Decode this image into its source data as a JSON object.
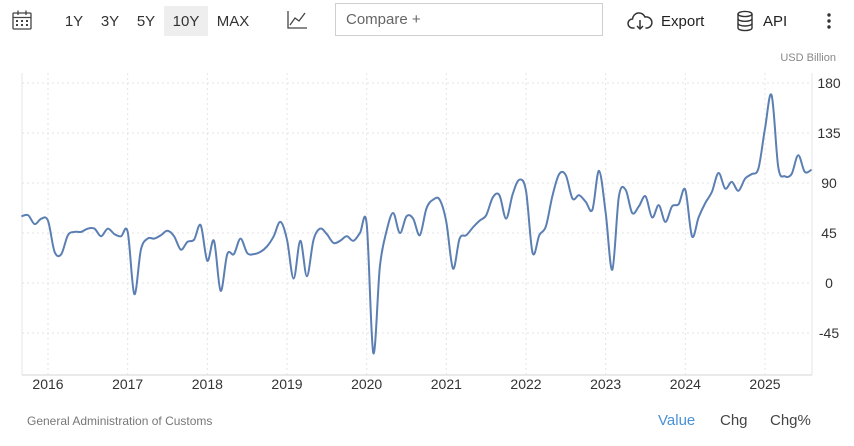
{
  "toolbar": {
    "ranges": [
      "1Y",
      "3Y",
      "5Y",
      "10Y",
      "MAX"
    ],
    "active_range": "10Y",
    "compare_placeholder": "Compare +",
    "export_label": "Export",
    "api_label": "API",
    "icons": [
      "calendar-icon",
      "line-chart-icon",
      "cloud-download-icon",
      "database-icon",
      "more-vertical-icon"
    ]
  },
  "footer": {
    "source": "General Administration of Customs",
    "tabs": [
      "Value",
      "Chg",
      "Chg%"
    ],
    "active_tab": "Value"
  },
  "colors": {
    "line": "#5b7fb2",
    "active_tab": "#4a90d9",
    "active_range_bg": "#eeeeee"
  },
  "chart_data": {
    "type": "line",
    "unit_label": "USD Billion",
    "x_tick_labels": [
      "2016",
      "2017",
      "2018",
      "2019",
      "2020",
      "2021",
      "2022",
      "2023",
      "2024",
      "2025"
    ],
    "y_tick_labels": [
      "180",
      "135",
      "90",
      "45",
      "0",
      "-45"
    ],
    "ylim": [
      -65,
      180
    ],
    "xlim": [
      "2015-09",
      "2025-08"
    ],
    "grid": true,
    "series": [
      {
        "x": [
          "2015-09",
          "2015-10",
          "2015-11",
          "2015-12",
          "2016-01",
          "2016-02",
          "2016-03",
          "2016-04",
          "2016-05",
          "2016-06",
          "2016-07",
          "2016-08",
          "2016-09",
          "2016-10",
          "2016-11",
          "2016-12",
          "2017-01",
          "2017-02",
          "2017-03",
          "2017-04",
          "2017-05",
          "2017-06",
          "2017-07",
          "2017-08",
          "2017-09",
          "2017-10",
          "2017-11",
          "2017-12",
          "2018-01",
          "2018-02",
          "2018-03",
          "2018-04",
          "2018-05",
          "2018-06",
          "2018-07",
          "2018-08",
          "2018-09",
          "2018-10",
          "2018-11",
          "2018-12",
          "2019-01",
          "2019-02",
          "2019-03",
          "2019-04",
          "2019-05",
          "2019-06",
          "2019-07",
          "2019-08",
          "2019-09",
          "2019-10",
          "2019-11",
          "2019-12",
          "2020-01",
          "2020-02",
          "2020-03",
          "2020-04",
          "2020-05",
          "2020-06",
          "2020-07",
          "2020-08",
          "2020-09",
          "2020-10",
          "2020-11",
          "2020-12",
          "2021-01",
          "2021-02",
          "2021-03",
          "2021-04",
          "2021-05",
          "2021-06",
          "2021-07",
          "2021-08",
          "2021-09",
          "2021-10",
          "2021-11",
          "2021-12",
          "2022-01",
          "2022-02",
          "2022-03",
          "2022-04",
          "2022-05",
          "2022-06",
          "2022-07",
          "2022-08",
          "2022-09",
          "2022-10",
          "2022-11",
          "2022-12",
          "2023-01",
          "2023-02",
          "2023-03",
          "2023-04",
          "2023-05",
          "2023-06",
          "2023-07",
          "2023-08",
          "2023-09",
          "2023-10",
          "2023-11",
          "2023-12",
          "2024-01",
          "2024-02",
          "2024-03",
          "2024-04",
          "2024-05",
          "2024-06",
          "2024-07",
          "2024-08",
          "2024-09",
          "2024-10",
          "2024-11",
          "2024-12",
          "2025-01",
          "2025-02",
          "2025-03",
          "2025-04",
          "2025-05",
          "2025-06",
          "2025-07",
          "2025-08"
        ],
        "values": [
          60,
          61,
          53,
          58,
          56,
          28,
          26,
          43,
          46,
          46,
          49,
          49,
          42,
          49,
          44,
          42,
          46,
          -10,
          30,
          40,
          40,
          43,
          47,
          42,
          30,
          37,
          39,
          52,
          20,
          38,
          -7,
          26,
          26,
          40,
          27,
          26,
          28,
          33,
          42,
          55,
          39,
          4,
          38,
          6,
          39,
          49,
          44,
          36,
          38,
          42,
          38,
          45,
          53,
          -63,
          15,
          47,
          63,
          45,
          60,
          58,
          43,
          67,
          75,
          75,
          55,
          13,
          40,
          43,
          50,
          56,
          61,
          77,
          79,
          58,
          80,
          93,
          83,
          27,
          43,
          51,
          79,
          98,
          97,
          76,
          79,
          73,
          66,
          101,
          63,
          12,
          78,
          84,
          63,
          69,
          78,
          59,
          70,
          55,
          69,
          71,
          84,
          42,
          59,
          72,
          82,
          99,
          85,
          91,
          83,
          94,
          98,
          103,
          139,
          169,
          104,
          96,
          98,
          115,
          100,
          102
        ]
      }
    ]
  }
}
